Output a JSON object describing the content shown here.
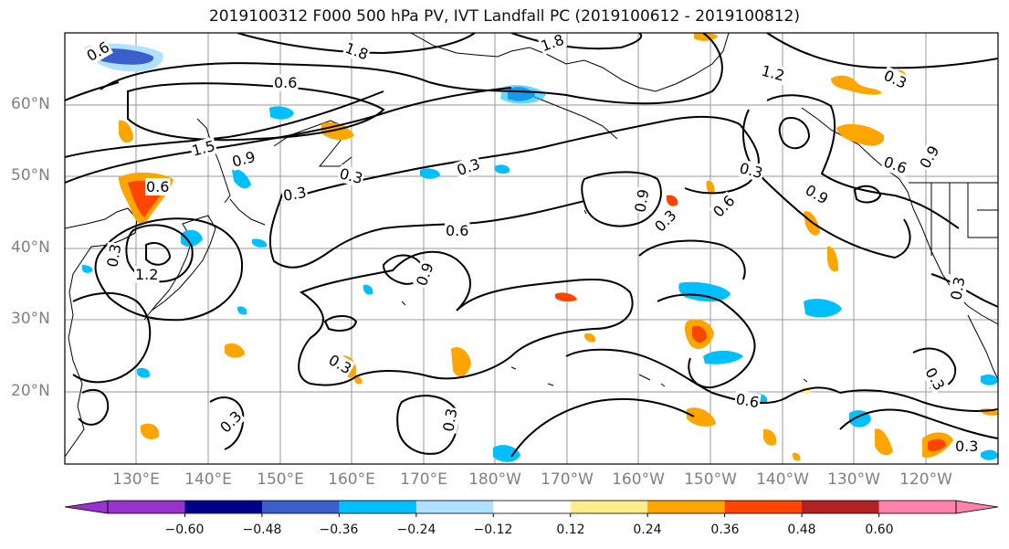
{
  "title": "2019100312 F000 500 hPa PV, IVT Landfall PC (2019100612 - 2019100812)",
  "lat_labels": [
    "60°N",
    "50°N",
    "40°N",
    "30°N",
    "20°N"
  ],
  "lon_labels": [
    "130°E",
    "140°E",
    "150°E",
    "160°E",
    "170°E",
    "180°W",
    "170°W",
    "160°W",
    "150°W",
    "140°W",
    "130°W",
    "120°W"
  ],
  "contour_labels": [
    "0.6",
    "1.8",
    "1.8",
    "0.6",
    "1.2",
    "0.3",
    "1.5",
    "0.9",
    "0.3",
    "0.3",
    "0.6",
    "0.6",
    "0.3",
    "0.3",
    "0.9",
    "0.6",
    "0.9",
    "0.6",
    "0.3",
    "0.9",
    "1.2",
    "0.9",
    "0.3",
    "0.3",
    "0.3",
    "0.6",
    "0.3",
    "0.3",
    "0.3",
    "0.3"
  ],
  "colorbar": {
    "colors": [
      "#9932cc",
      "#00008b",
      "#3a5fcd",
      "#00bfff",
      "#b0e2ff",
      "#ffffff",
      "#ffec8b",
      "#ffa500",
      "#ff4500",
      "#b22222",
      "#ff82ab"
    ],
    "under_color": "#9932cc",
    "over_color": "#ff82ab",
    "ticks": [
      "−0.60",
      "−0.48",
      "−0.36",
      "−0.24",
      "−0.12",
      "0.12",
      "0.24",
      "0.36",
      "0.48",
      "0.60"
    ]
  },
  "colors": {
    "contour": "#000000",
    "grid": "#999999",
    "coastline": "#000000",
    "axis_label": "#808080"
  }
}
